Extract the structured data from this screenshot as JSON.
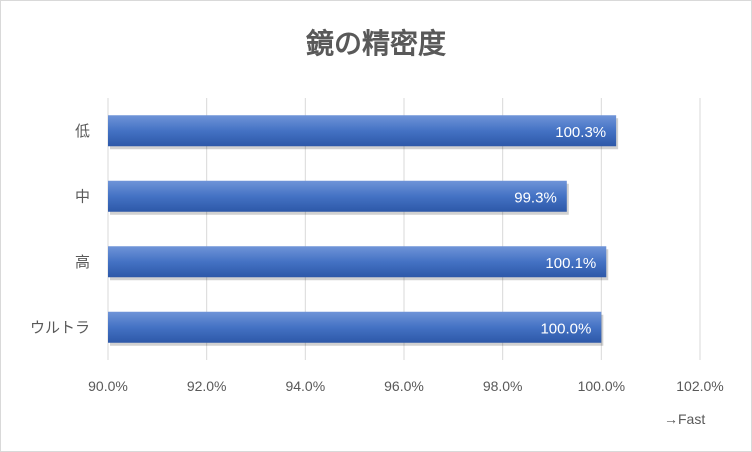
{
  "chart_data": {
    "type": "bar",
    "orientation": "horizontal",
    "title": "鏡の精密度",
    "categories": [
      "低",
      "中",
      "高",
      "ウルトラ"
    ],
    "values": [
      100.3,
      99.3,
      100.1,
      100.0
    ],
    "data_labels": [
      "100.3%",
      "99.3%",
      "100.1%",
      "100.0%"
    ],
    "xlim": [
      90,
      102
    ],
    "x_ticks": [
      90,
      92,
      94,
      96,
      98,
      100,
      102
    ],
    "x_tick_labels": [
      "90.0%",
      "92.0%",
      "94.0%",
      "96.0%",
      "98.0%",
      "100.0%",
      "102.0%"
    ],
    "xlabel": "→Fast",
    "grid": "vertical",
    "legend": "none",
    "bar_color": "#4472c4"
  }
}
